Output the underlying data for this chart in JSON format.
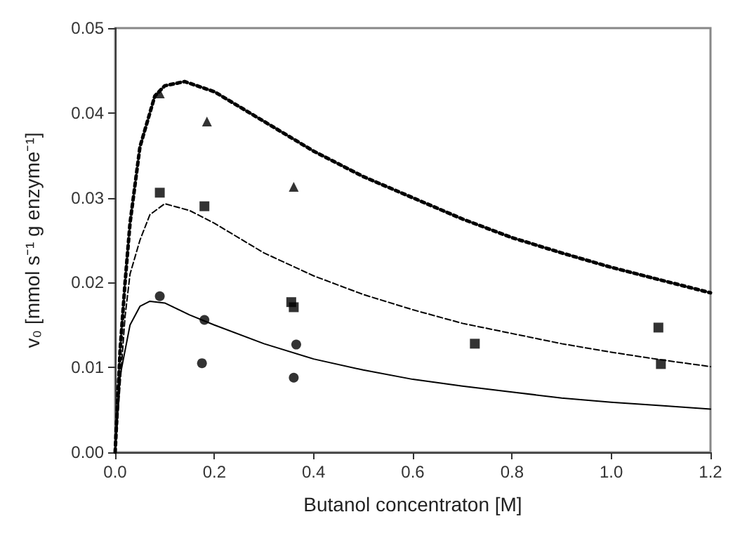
{
  "chart_data": {
    "type": "scatter",
    "xlabel": "Butanol concentraton [M]",
    "ylabel": "v₀ [mmol s⁻¹ g enzyme⁻¹]",
    "xlim": [
      0,
      1.2
    ],
    "xticks": [
      {
        "value": 0,
        "label": "0.0"
      },
      {
        "value": 0.2,
        "label": "0.2"
      },
      {
        "value": 0.4,
        "label": "0.4"
      },
      {
        "value": 0.6,
        "label": "0.6"
      },
      {
        "value": 0.8,
        "label": "0.8"
      },
      {
        "value": 1,
        "label": "1.0"
      },
      {
        "value": 1.2,
        "label": "1.2"
      }
    ],
    "ylim": [
      0,
      0.05
    ],
    "yticks": [
      {
        "value": 0,
        "label": "0.00"
      },
      {
        "value": 0.01,
        "label": "0.01"
      },
      {
        "value": 0.02,
        "label": "0.02"
      },
      {
        "value": 0.03,
        "label": "0.03"
      },
      {
        "value": 0.04,
        "label": "0.04"
      },
      {
        "value": 0.05,
        "label": "0.05"
      }
    ],
    "grid": false,
    "series": [
      {
        "type": "line",
        "color": "#000000",
        "line_style": "dotted",
        "marker": "none",
        "x": [
          0,
          0.01,
          0.02,
          0.03,
          0.05,
          0.08,
          0.1,
          0.14,
          0.2,
          0.3,
          0.4,
          0.5,
          0.6,
          0.7,
          0.8,
          0.9,
          1.0,
          1.1,
          1.2
        ],
        "values": [
          0,
          0.012,
          0.02,
          0.027,
          0.036,
          0.042,
          0.0432,
          0.0437,
          0.0425,
          0.039,
          0.0355,
          0.0325,
          0.03,
          0.0275,
          0.0253,
          0.0235,
          0.0218,
          0.0203,
          0.0188
        ]
      },
      {
        "type": "line",
        "color": "#000000",
        "line_style": "dashed",
        "marker": "none",
        "x": [
          0,
          0.02,
          0.03,
          0.05,
          0.07,
          0.1,
          0.15,
          0.2,
          0.3,
          0.4,
          0.5,
          0.6,
          0.7,
          0.8,
          0.9,
          1.0,
          1.1,
          1.2
        ],
        "values": [
          0,
          0.016,
          0.021,
          0.025,
          0.028,
          0.0293,
          0.0285,
          0.027,
          0.0235,
          0.0208,
          0.0186,
          0.0168,
          0.0152,
          0.014,
          0.0128,
          0.0118,
          0.0109,
          0.0101
        ]
      },
      {
        "type": "line",
        "color": "#000000",
        "line_style": "solid",
        "marker": "none",
        "x": [
          0,
          0.01,
          0.03,
          0.05,
          0.07,
          0.1,
          0.15,
          0.2,
          0.3,
          0.4,
          0.5,
          0.6,
          0.7,
          0.8,
          0.9,
          1.0,
          1.1,
          1.2
        ],
        "values": [
          0,
          0.009,
          0.015,
          0.0172,
          0.0178,
          0.0176,
          0.0162,
          0.015,
          0.0128,
          0.011,
          0.0097,
          0.0086,
          0.0078,
          0.0071,
          0.0064,
          0.0059,
          0.0055,
          0.0051
        ]
      },
      {
        "color": "#000000",
        "marker": "triangle",
        "x": [
          0.09,
          0.185,
          0.36
        ],
        "values": [
          0.0423,
          0.039,
          0.0313
        ]
      },
      {
        "color": "#000000",
        "marker": "square",
        "x": [
          0.09,
          0.18,
          0.355,
          0.36,
          0.725,
          1.095,
          1.1
        ],
        "values": [
          0.0306,
          0.029,
          0.0177,
          0.0171,
          0.0128,
          0.0147,
          0.0104
        ]
      },
      {
        "color": "#000000",
        "marker": "circle",
        "x": [
          0.09,
          0.18,
          0.175,
          0.365,
          0.36
        ],
        "values": [
          0.0184,
          0.0156,
          0.0105,
          0.0127,
          0.0088
        ]
      }
    ]
  }
}
